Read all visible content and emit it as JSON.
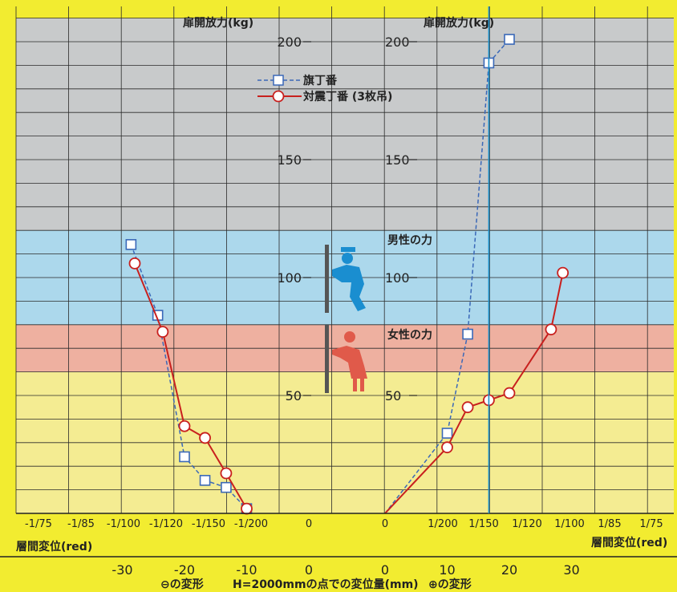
{
  "chart_data": {
    "type": "line",
    "y_title_left": "扉開放力(kg)",
    "y_title_right": "扉開放力(kg)",
    "y_ticks": [
      "200",
      "150",
      "100",
      "50"
    ],
    "y_ticks_right": [
      "200",
      "150",
      "100",
      "50"
    ],
    "ylim": [
      0,
      210
    ],
    "drift_ticks_left": [
      "-1/75",
      "-1/85",
      "-1/100",
      "-1/120",
      "-1/150",
      "-1/200",
      "0"
    ],
    "drift_ticks_right": [
      "0",
      "1/200",
      "1/150",
      "1/120",
      "1/100",
      "1/85",
      "1/75"
    ],
    "drift_label_left": "層間変位(red)",
    "drift_label_right": "層間変位(red)",
    "mm_ticks_left": [
      "-30",
      "-20",
      "-10",
      "0"
    ],
    "mm_ticks_right": [
      "0",
      "10",
      "20",
      "30"
    ],
    "xlabel_minus": "⊖の変形",
    "xlabel_center": "H=2000mmの点での変位量(mm)",
    "xlabel_plus": "⊕の変形",
    "zones": [
      {
        "label": "男性の力",
        "range": [
          80,
          120
        ],
        "color": "#acd8ec"
      },
      {
        "label": "女性の力",
        "range": [
          60,
          80
        ],
        "color": "#eeb0a0"
      },
      {
        "label": "",
        "range": [
          0,
          60
        ],
        "color": "#f4ec92"
      },
      {
        "label": "",
        "range": [
          120,
          210
        ],
        "color": "#c8cacb"
      }
    ],
    "highlight_line": {
      "label": "1/120",
      "x": 16.7,
      "color": "#1a8ec8"
    },
    "series": [
      {
        "name": "旗丁番",
        "marker": "square",
        "line_style": "dashed",
        "color": "#3a68b8",
        "left_points": [
          [
            -28.6,
            114
          ],
          [
            -24.3,
            84
          ],
          [
            -20,
            24
          ],
          [
            -16.7,
            14
          ],
          [
            -13.3,
            11
          ],
          [
            -10,
            2
          ]
        ],
        "right_points": [
          [
            0,
            0
          ],
          [
            10,
            34
          ],
          [
            13.3,
            76
          ],
          [
            16.7,
            191
          ],
          [
            20,
            201
          ]
        ]
      },
      {
        "name": "対震丁番 (3枚吊)",
        "marker": "circle",
        "line_style": "solid",
        "color": "#c8201e",
        "left_points": [
          [
            -28,
            106
          ],
          [
            -23.5,
            77
          ],
          [
            -20,
            37
          ],
          [
            -16.7,
            32
          ],
          [
            -13.3,
            17
          ],
          [
            -10,
            2
          ]
        ],
        "right_points": [
          [
            0,
            0
          ],
          [
            10,
            28
          ],
          [
            13.3,
            45
          ],
          [
            16.7,
            48
          ],
          [
            20,
            51
          ],
          [
            26.7,
            78
          ],
          [
            28.6,
            102
          ]
        ]
      }
    ]
  },
  "icons": {
    "man": "man-pushing-door-icon",
    "woman": "woman-pushing-door-icon",
    "man_color": "#1a8ed0",
    "woman_color": "#e05a4a"
  }
}
